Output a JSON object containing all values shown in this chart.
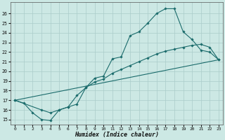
{
  "xlabel": "Humidex (Indice chaleur)",
  "bg_color": "#cce8e4",
  "grid_color": "#aaccca",
  "line_color": "#1a6b6b",
  "xlim": [
    -0.5,
    23.5
  ],
  "ylim": [
    14.5,
    27.2
  ],
  "xticks": [
    0,
    1,
    2,
    3,
    4,
    5,
    6,
    7,
    8,
    9,
    10,
    11,
    12,
    13,
    14,
    15,
    16,
    17,
    18,
    19,
    20,
    21,
    22,
    23
  ],
  "yticks": [
    15,
    16,
    17,
    18,
    19,
    20,
    21,
    22,
    23,
    24,
    25,
    26
  ],
  "line1_x": [
    0,
    1,
    2,
    3,
    4,
    5,
    6,
    7,
    8,
    9,
    10,
    11,
    12,
    13,
    14,
    15,
    16,
    17,
    18,
    19,
    20,
    21,
    22,
    23
  ],
  "line1_y": [
    17.0,
    16.7,
    15.7,
    15.0,
    14.9,
    16.0,
    16.3,
    16.6,
    18.3,
    19.3,
    19.5,
    21.3,
    21.5,
    23.7,
    24.1,
    25.0,
    26.0,
    26.5,
    26.5,
    24.1,
    23.3,
    22.2,
    22.0,
    21.2
  ],
  "line2_x": [
    0,
    3,
    4,
    5,
    6,
    7,
    8,
    9,
    10,
    11,
    12,
    13,
    14,
    15,
    16,
    17,
    18,
    19,
    20,
    21,
    22,
    23
  ],
  "line2_y": [
    17.0,
    16.0,
    15.7,
    16.0,
    16.3,
    17.5,
    18.3,
    18.9,
    19.2,
    19.8,
    20.2,
    20.6,
    21.0,
    21.4,
    21.8,
    22.1,
    22.3,
    22.5,
    22.7,
    22.8,
    22.5,
    21.2
  ],
  "line3_x": [
    0,
    23
  ],
  "line3_y": [
    17.0,
    21.2
  ]
}
